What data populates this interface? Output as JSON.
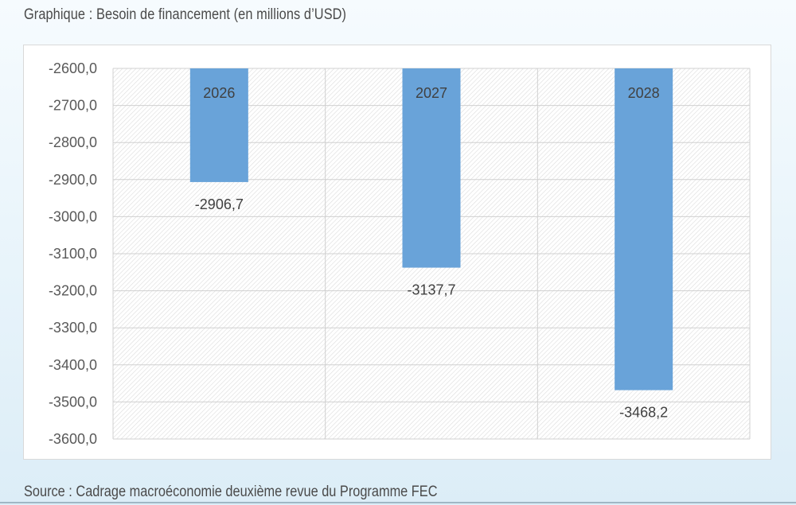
{
  "title": "Graphique : Besoin de financement (en millions d’USD)",
  "source": "Source : Cadrage macroéconomie deuxième revue du Programme FEC",
  "chart_data": {
    "type": "bar",
    "categories": [
      "2026",
      "2027",
      "2028"
    ],
    "values": [
      -2906.7,
      -3137.7,
      -3468.2
    ],
    "value_labels": [
      "-2906,7",
      "-3137,7",
      "-3468,2"
    ],
    "title": "Graphique : Besoin de financement (en millions d’USD)",
    "xlabel": "",
    "ylabel": "",
    "ylim": [
      -3600,
      -2600
    ],
    "yticks": [
      -2600,
      -2700,
      -2800,
      -2900,
      -3000,
      -3100,
      -3200,
      -3300,
      -3400,
      -3500,
      -3600
    ],
    "ytick_labels": [
      "-2600,0",
      "-2700,0",
      "-2800,0",
      "-2900,0",
      "-3000,0",
      "-3100,0",
      "-3200,0",
      "-3300,0",
      "-3400,0",
      "-3500,0",
      "-3600,0"
    ],
    "grid": true,
    "legend": "none",
    "bar_color": "#69a3d9",
    "category_label_position": "inside-top"
  }
}
